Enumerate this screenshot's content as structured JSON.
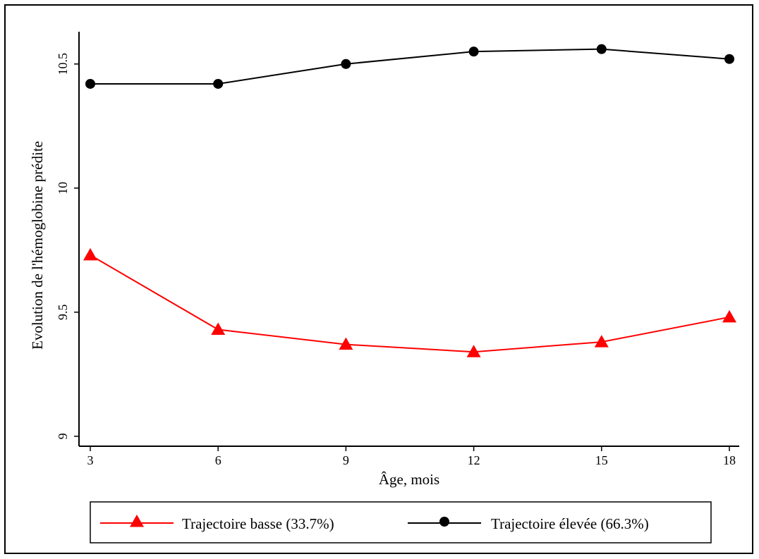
{
  "chart_data": {
    "type": "line",
    "title": "",
    "xlabel": "Âge, mois",
    "ylabel": "Evolution de l'hémoglobine prédite",
    "x": [
      3,
      6,
      9,
      12,
      15,
      18
    ],
    "xticks": [
      "3",
      "6",
      "9",
      "12",
      "15",
      "18"
    ],
    "yticks": [
      "9",
      "9.5",
      "10",
      "10.5"
    ],
    "ylim": [
      8.96,
      10.63
    ],
    "xlim": [
      2.9,
      18.1
    ],
    "grid": false,
    "legend_position": "bottom",
    "series": [
      {
        "name": "Trajectoire basse (33.7%)",
        "color": "#ff0000",
        "marker": "triangle",
        "values": [
          9.73,
          9.43,
          9.37,
          9.34,
          9.38,
          9.48
        ]
      },
      {
        "name": "Trajectoire élevée (66.3%)",
        "color": "#000000",
        "marker": "circle",
        "values": [
          10.42,
          10.42,
          10.5,
          10.55,
          10.56,
          10.52
        ]
      }
    ]
  }
}
